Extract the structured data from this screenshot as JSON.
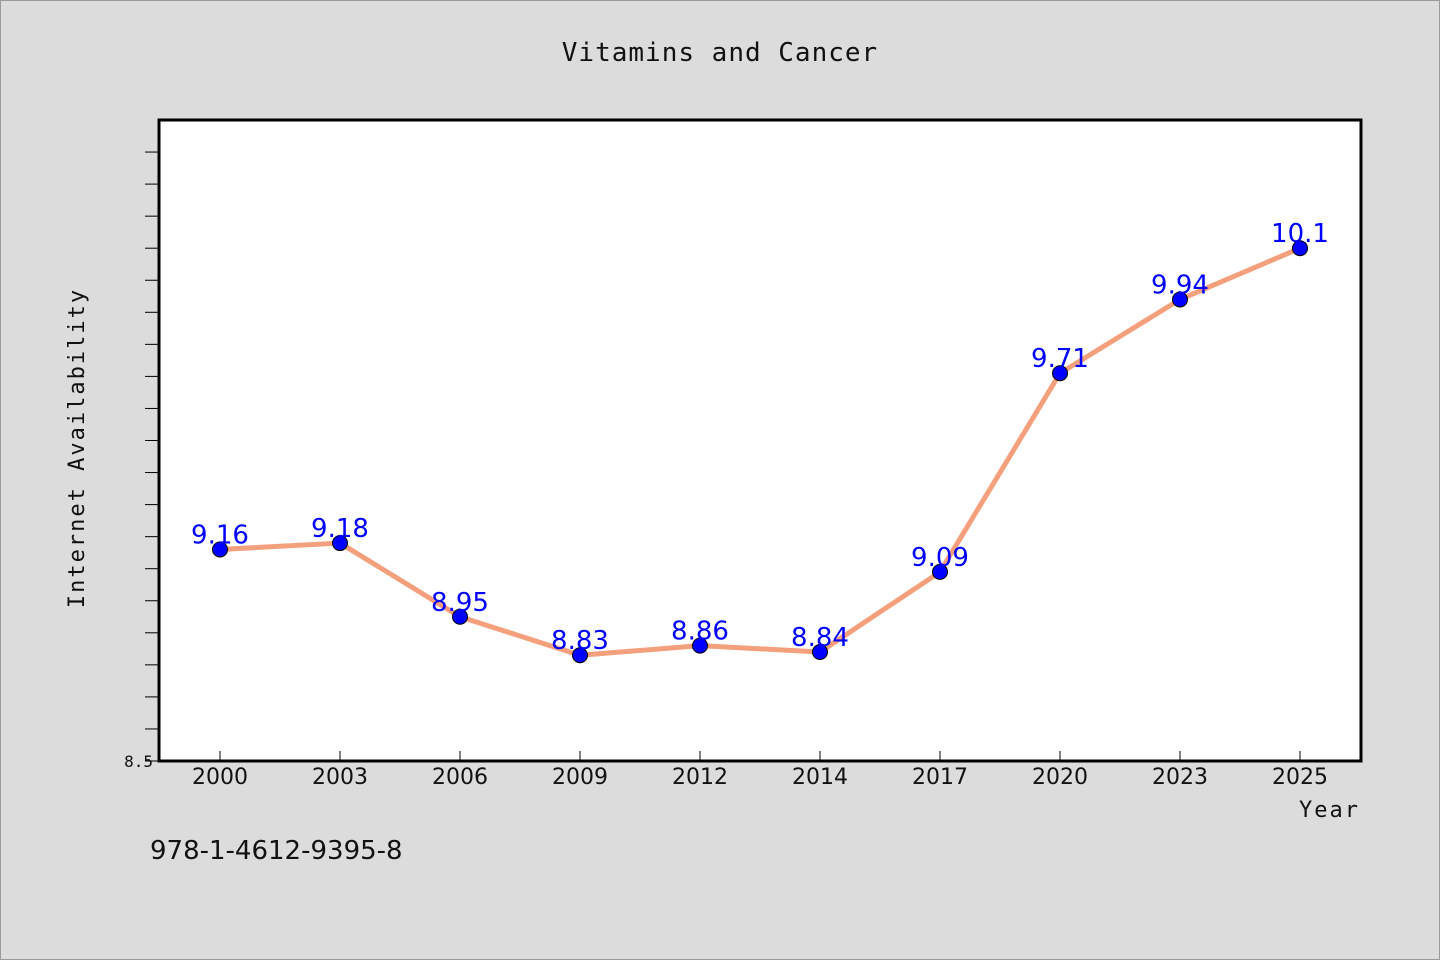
{
  "chart_data": {
    "type": "line",
    "title": "Vitamins and Cancer",
    "xlabel": "Year",
    "ylabel": "Internet Availability",
    "categories": [
      "2000",
      "2003",
      "2006",
      "2009",
      "2012",
      "2014",
      "2017",
      "2020",
      "2023",
      "2025"
    ],
    "series": [
      {
        "values": [
          9.16,
          9.18,
          8.95,
          8.83,
          8.86,
          8.84,
          9.09,
          9.71,
          9.94,
          10.1
        ],
        "data_labels": [
          "9.16",
          "9.18",
          "8.95",
          "8.83",
          "8.86",
          "8.84",
          "9.09",
          "9.71",
          "9.94",
          "10.1"
        ],
        "line_color": "#f4a07c",
        "marker_color": "#0000ff"
      }
    ],
    "ylim": [
      8.5,
      10.5
    ],
    "ytick_labels": [
      "8.5"
    ],
    "minor_ytick_step": 0.1,
    "grid": false,
    "legend": "none",
    "data_label_color": "#0000ff"
  },
  "footer": {
    "isbn": "978-1-4612-9395-8"
  }
}
